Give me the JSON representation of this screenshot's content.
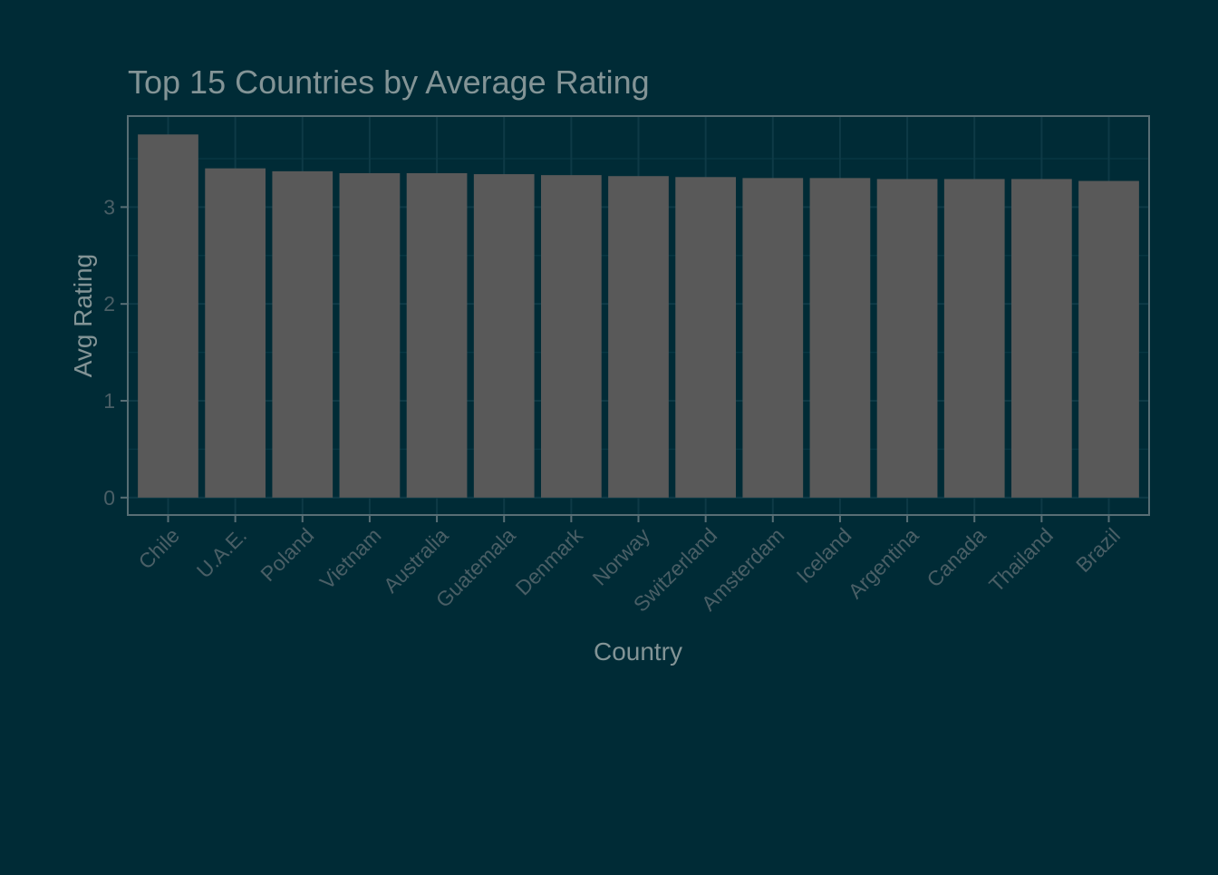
{
  "chart_data": {
    "type": "bar",
    "title": "Top 15 Countries by Average Rating",
    "xlabel": "Country",
    "ylabel": "Avg Rating",
    "categories": [
      "Chile",
      "U.A.E.",
      "Poland",
      "Vietnam",
      "Australia",
      "Guatemala",
      "Denmark",
      "Norway",
      "Switzerland",
      "Amsterdam",
      "Iceland",
      "Argentina",
      "Canada",
      "Thailand",
      "Brazil"
    ],
    "values": [
      3.75,
      3.4,
      3.37,
      3.35,
      3.35,
      3.34,
      3.33,
      3.32,
      3.31,
      3.3,
      3.3,
      3.29,
      3.29,
      3.29,
      3.27
    ],
    "y_ticks": [
      "0",
      "1",
      "2",
      "3"
    ],
    "ylim": [
      -0.18,
      3.94
    ],
    "grid": true,
    "legend": "none",
    "colors": {
      "background": "#002b36",
      "bar_fill": "#595959",
      "panel_border": "#586e75",
      "grid_major": "#0e3a46",
      "grid_minor": "#073642",
      "title_text": "#839496",
      "axis_title_text": "#839496",
      "tick_text": "#4a5f66",
      "tick_mark": "#586e75"
    }
  }
}
